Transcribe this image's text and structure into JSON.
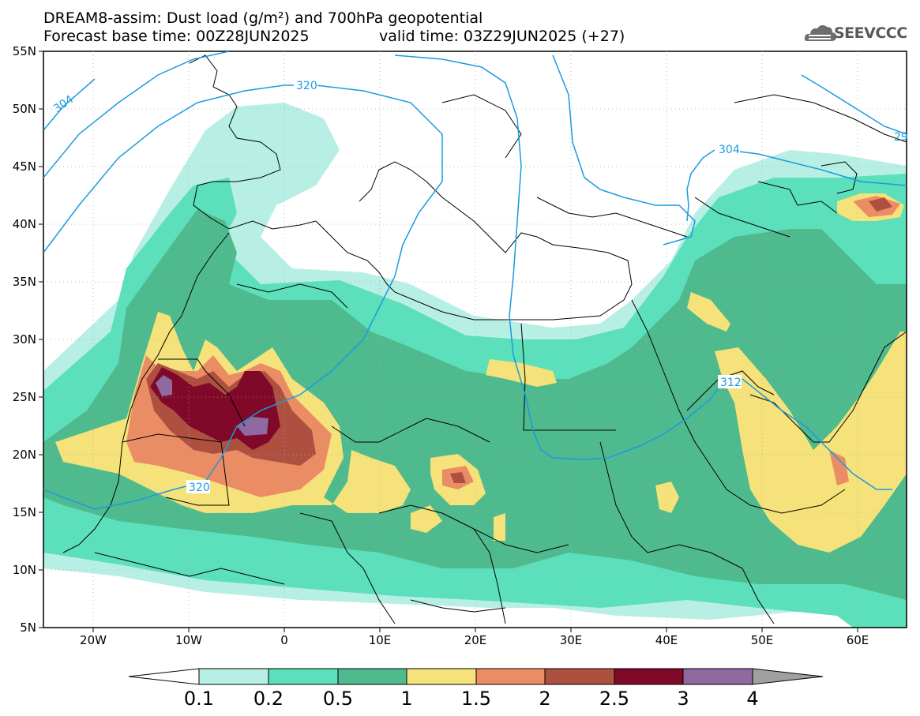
{
  "header": {
    "line1": "DREAM8-assim: Dust load (g/m²) and 700hPa geopotential",
    "line2": "Forecast base time: 00Z28JUN2025",
    "valid": "valid time: 03Z29JUN2025 (+27)"
  },
  "logo": {
    "text": "SEEVCCC",
    "icon": "cloud-icon"
  },
  "map": {
    "lon_range": [
      -25,
      65
    ],
    "lat_range": [
      5,
      55
    ],
    "x_ticks": [
      "20W",
      "10W",
      "0",
      "10E",
      "20E",
      "30E",
      "40E",
      "50E",
      "60E"
    ],
    "y_ticks": [
      "55N",
      "50N",
      "45N",
      "40N",
      "35N",
      "30N",
      "25N",
      "20N",
      "15N",
      "10N",
      "5N"
    ],
    "contour_labels": [
      "304",
      "320",
      "320",
      "312",
      "304",
      "29"
    ]
  },
  "colorbar": {
    "labels": [
      "0.1",
      "0.2",
      "0.5",
      "1",
      "1.5",
      "2",
      "2.5",
      "3",
      "4"
    ],
    "colors": {
      "c01": "#b8efe4",
      "c02": "#5cdfbb",
      "c05": "#4fba8e",
      "c1": "#f5e27a",
      "c15": "#ea8d64",
      "c2": "#ad5040",
      "c25": "#800828",
      "c3": "#8e6aa0",
      "c4": "#a0a0a0"
    }
  }
}
